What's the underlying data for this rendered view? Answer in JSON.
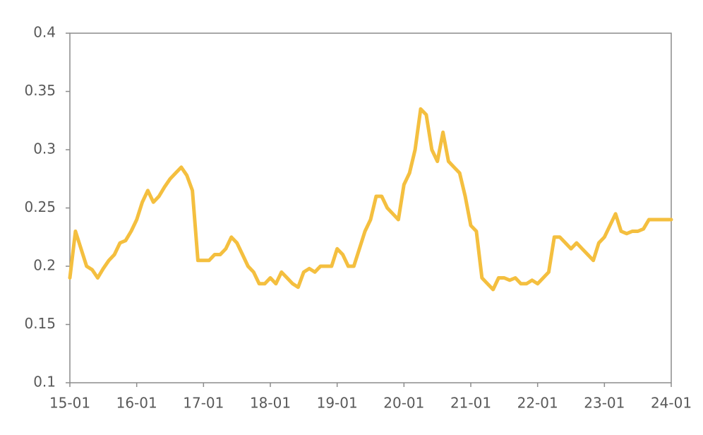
{
  "chart_data": {
    "type": "line",
    "categories": [
      "15-01",
      null,
      null,
      null,
      null,
      null,
      null,
      null,
      null,
      null,
      null,
      null,
      "16-01",
      null,
      null,
      null,
      null,
      null,
      null,
      null,
      null,
      null,
      null,
      null,
      "17-01",
      null,
      null,
      null,
      null,
      null,
      null,
      null,
      null,
      null,
      null,
      null,
      "18-01",
      null,
      null,
      null,
      null,
      null,
      null,
      null,
      null,
      null,
      null,
      null,
      "19-01",
      null,
      null,
      null,
      null,
      null,
      null,
      null,
      null,
      null,
      null,
      null,
      "20-01",
      null,
      null,
      null,
      null,
      null,
      null,
      null,
      null,
      null,
      null,
      null,
      "21-01",
      null,
      null,
      null,
      null,
      null,
      null,
      null,
      null,
      null,
      null,
      null,
      "22-01",
      null,
      null,
      null,
      null,
      null,
      null,
      null,
      null,
      null,
      null,
      null,
      "23-01",
      null,
      null,
      null,
      null,
      null,
      null,
      null,
      null,
      null,
      null,
      null,
      "24-01"
    ],
    "series": [
      {
        "color": "#f4bf3f",
        "values": [
          0.19,
          0.23,
          0.215,
          0.2,
          0.197,
          0.19,
          0.198,
          0.205,
          0.21,
          0.22,
          0.222,
          0.23,
          0.24,
          0.255,
          0.265,
          0.255,
          0.26,
          0.268,
          0.275,
          0.28,
          0.285,
          0.278,
          0.265,
          0.205,
          0.205,
          0.205,
          0.21,
          0.21,
          0.215,
          0.225,
          0.22,
          0.21,
          0.2,
          0.195,
          0.185,
          0.185,
          0.19,
          0.185,
          0.195,
          0.19,
          0.185,
          0.182,
          0.195,
          0.198,
          0.195,
          0.2,
          0.2,
          0.2,
          0.215,
          0.21,
          0.2,
          0.2,
          0.215,
          0.23,
          0.24,
          0.26,
          0.26,
          0.25,
          0.245,
          0.24,
          0.27,
          0.28,
          0.3,
          0.335,
          0.33,
          0.3,
          0.29,
          0.315,
          0.29,
          0.285,
          0.28,
          0.26,
          0.235,
          0.23,
          0.19,
          0.185,
          0.18,
          0.19,
          0.19,
          0.188,
          0.19,
          0.185,
          0.185,
          0.188,
          0.185,
          0.19,
          0.195,
          0.225,
          0.225,
          0.22,
          0.215,
          0.22,
          0.215,
          0.21,
          0.205,
          0.22,
          0.225,
          0.235,
          0.245,
          0.23,
          0.228,
          0.23,
          0.23,
          0.232,
          0.24,
          0.24,
          0.24,
          0.24,
          0.24
        ]
      }
    ],
    "ylim": [
      0.1,
      0.4
    ],
    "yticks": [
      0.1,
      0.15,
      0.2,
      0.25,
      0.3,
      0.35,
      0.4
    ],
    "grid": false
  }
}
